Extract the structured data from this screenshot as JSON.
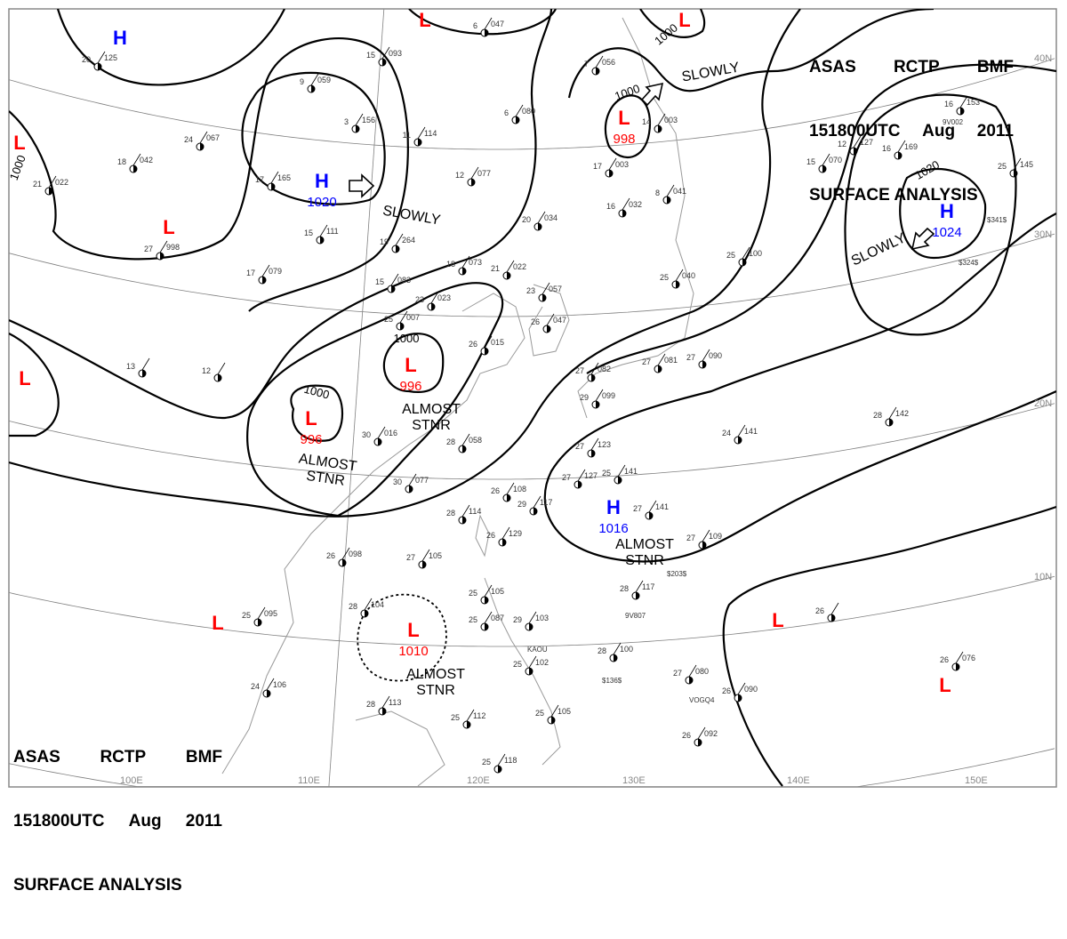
{
  "header": {
    "line1": [
      "ASAS",
      "RCTP",
      "BMF"
    ],
    "line2": [
      "151800UTC",
      "Aug",
      "2011"
    ],
    "line3": "SURFACE ANALYSIS"
  },
  "colors": {
    "high": "#0000ff",
    "low": "#ff0000",
    "isobar": "#000000",
    "grid": "#808080",
    "coast": "#9a9a9a"
  },
  "longitude_labels": [
    "100E",
    "110E",
    "120E",
    "130E",
    "140E",
    "150E"
  ],
  "latitude_labels": [
    "40N",
    "30N",
    "20N",
    "10N"
  ],
  "pressure_centers": [
    {
      "type": "H",
      "value": ""
    },
    {
      "type": "L",
      "value": ""
    },
    {
      "type": "H",
      "value": "1020"
    },
    {
      "type": "L",
      "value": ""
    },
    {
      "type": "L",
      "value": ""
    },
    {
      "type": "L",
      "value": "998"
    },
    {
      "type": "H",
      "value": "1024"
    },
    {
      "type": "L",
      "value": ""
    },
    {
      "type": "L",
      "value": "996"
    },
    {
      "type": "L",
      "value": "996"
    },
    {
      "type": "H",
      "value": "1016"
    },
    {
      "type": "L",
      "value": "1010"
    },
    {
      "type": "L",
      "value": ""
    },
    {
      "type": "L",
      "value": ""
    },
    {
      "type": "L",
      "value": ""
    },
    {
      "type": "L",
      "value": ""
    }
  ],
  "isobar_labels": [
    "1000",
    "1000",
    "1000",
    "1020",
    "1000",
    "1000"
  ],
  "movement_labels": [
    "SLOWLY",
    "SLOWLY",
    "SLOWLY",
    "ALMOST\nSTNR",
    "ALMOST\nSTNR",
    "ALMOST\nSTNR",
    "ALMOST\nSTNR"
  ],
  "stations": [
    [
      "20",
      "125"
    ],
    [
      "24",
      "067"
    ],
    [
      "18",
      "042"
    ],
    [
      "21",
      "022"
    ],
    [
      "27",
      "998"
    ],
    [
      "17",
      "079"
    ],
    [
      "9",
      "059"
    ],
    [
      "15",
      "093"
    ],
    [
      "3",
      "156"
    ],
    [
      "11",
      "114"
    ],
    [
      "17",
      "165"
    ],
    [
      "15",
      "111"
    ],
    [
      "19",
      "264"
    ],
    [
      "15",
      "083"
    ],
    [
      "18",
      "073"
    ],
    [
      "21",
      "022"
    ],
    [
      "23",
      "023"
    ],
    [
      "23",
      "057"
    ],
    [
      "26",
      "047"
    ],
    [
      "25",
      "007"
    ],
    [
      "26",
      "015"
    ],
    [
      "30",
      "016"
    ],
    [
      "28",
      "058"
    ],
    [
      "30",
      "077"
    ],
    [
      "26",
      "108"
    ],
    [
      "29",
      "117"
    ],
    [
      "28",
      "114"
    ],
    [
      "26",
      "129"
    ],
    [
      "27",
      "105"
    ],
    [
      "26",
      "098"
    ],
    [
      "25",
      "095"
    ],
    [
      "28",
      "104"
    ],
    [
      "24",
      "106"
    ],
    [
      "28",
      "113"
    ],
    [
      "25",
      "112"
    ],
    [
      "25",
      "118"
    ],
    [
      "25",
      "105"
    ],
    [
      "25",
      "087"
    ],
    [
      "29",
      "103"
    ],
    [
      "28",
      "100"
    ],
    [
      "25",
      "102"
    ],
    [
      "25",
      "105"
    ],
    [
      "27",
      "080"
    ],
    [
      "26",
      "090"
    ],
    [
      "26",
      "092"
    ],
    [
      "26",
      "076"
    ],
    [
      "26",
      ""
    ],
    [
      "28",
      "117"
    ],
    [
      "27",
      "109"
    ],
    [
      "27",
      "141"
    ],
    [
      "25",
      "141"
    ],
    [
      "27",
      "127"
    ],
    [
      "27",
      "123"
    ],
    [
      "24",
      "141"
    ],
    [
      "28",
      "142"
    ],
    [
      "27",
      "081"
    ],
    [
      "27",
      "090"
    ],
    [
      "27",
      "082"
    ],
    [
      "29",
      "099"
    ],
    [
      "25",
      "100"
    ],
    [
      "25",
      "040"
    ],
    [
      "8",
      "041"
    ],
    [
      "16",
      "032"
    ],
    [
      "17",
      "003"
    ],
    [
      "14",
      "003"
    ],
    [
      "20",
      "034"
    ],
    [
      "12",
      "077"
    ],
    [
      "6",
      "080"
    ],
    [
      "7",
      "056"
    ],
    [
      "6",
      "047"
    ],
    [
      "15",
      "070"
    ],
    [
      "12",
      "127"
    ],
    [
      "16",
      "169"
    ],
    [
      "16",
      "153"
    ],
    [
      "25",
      "145"
    ],
    [
      "13",
      ""
    ],
    [
      "12",
      ""
    ]
  ],
  "ship_ids": [
    "9V807",
    "KAOU",
    "VOGQ4",
    "9V002",
    "$203$",
    "$136$",
    "$324$",
    "$341$"
  ]
}
